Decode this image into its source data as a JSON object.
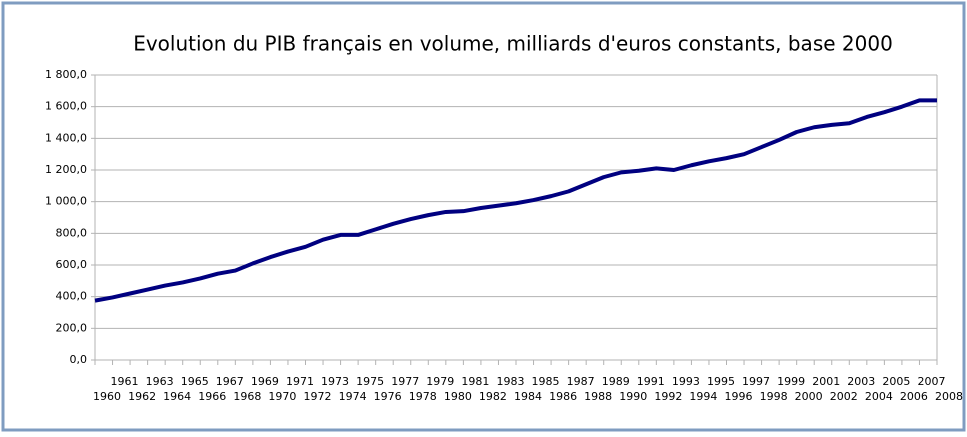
{
  "chart_data": {
    "type": "line",
    "title": "Evolution du PIB français en volume, milliards d'euros constants, base 2000",
    "x": [
      1960,
      1961,
      1962,
      1963,
      1964,
      1965,
      1966,
      1967,
      1968,
      1969,
      1970,
      1971,
      1972,
      1973,
      1974,
      1975,
      1976,
      1977,
      1978,
      1979,
      1980,
      1981,
      1982,
      1983,
      1984,
      1985,
      1986,
      1987,
      1988,
      1989,
      1990,
      1991,
      1992,
      1993,
      1994,
      1995,
      1996,
      1997,
      1998,
      1999,
      2000,
      2001,
      2002,
      2003,
      2004,
      2005,
      2006,
      2007,
      2008
    ],
    "series": [
      {
        "color": "#000080",
        "values": [
          375,
          395,
          420,
          445,
          470,
          490,
          515,
          545,
          565,
          610,
          650,
          685,
          715,
          760,
          790,
          790,
          825,
          860,
          890,
          915,
          935,
          940,
          960,
          975,
          990,
          1010,
          1035,
          1065,
          1110,
          1155,
          1185,
          1195,
          1210,
          1200,
          1230,
          1255,
          1275,
          1300,
          1345,
          1390,
          1440,
          1470,
          1485,
          1495,
          1535,
          1565,
          1600,
          1640,
          1640
        ]
      }
    ],
    "xlim": [
      1960,
      2008
    ],
    "xticks": [
      1960,
      1961,
      1962,
      1963,
      1964,
      1965,
      1966,
      1967,
      1968,
      1969,
      1970,
      1971,
      1972,
      1973,
      1974,
      1975,
      1976,
      1977,
      1978,
      1979,
      1980,
      1981,
      1982,
      1983,
      1984,
      1985,
      1986,
      1987,
      1988,
      1989,
      1990,
      1991,
      1992,
      1993,
      1994,
      1995,
      1996,
      1997,
      1998,
      1999,
      2000,
      2001,
      2002,
      2003,
      2004,
      2005,
      2006,
      2007,
      2008
    ],
    "ylim": [
      0,
      1800
    ],
    "yticks": [
      {
        "value": 0,
        "label": "0,0"
      },
      {
        "value": 200,
        "label": "200,0"
      },
      {
        "value": 400,
        "label": "400,0"
      },
      {
        "value": 600,
        "label": "600,0"
      },
      {
        "value": 800,
        "label": "800,0"
      },
      {
        "value": 1000,
        "label": "1 000,0"
      },
      {
        "value": 1200,
        "label": "1 200,0"
      },
      {
        "value": 1400,
        "label": "1 400,0"
      },
      {
        "value": 1600,
        "label": "1 600,0"
      },
      {
        "value": 1800,
        "label": "1 800,0"
      }
    ],
    "grid": true
  }
}
